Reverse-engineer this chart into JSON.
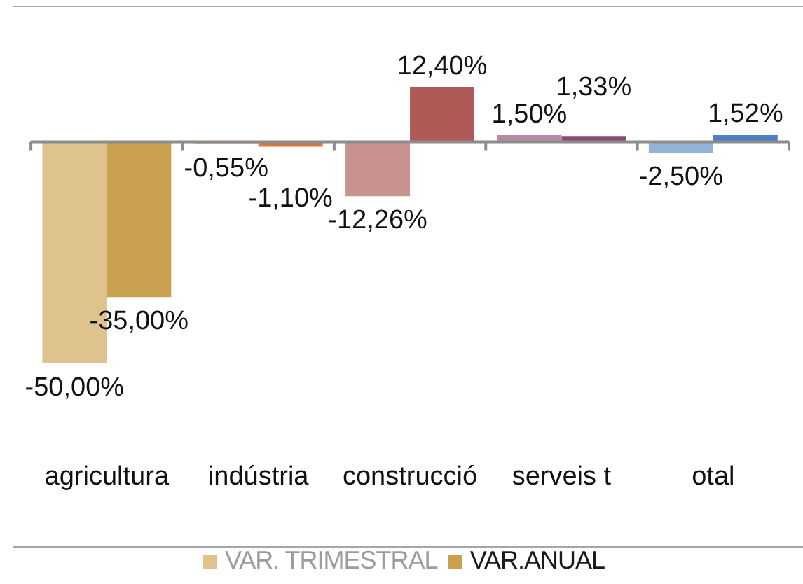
{
  "chart_data": {
    "type": "bar",
    "categories": [
      "agricultura",
      "indústria",
      "construcció",
      "serveis t",
      "otal"
    ],
    "series": [
      {
        "name": "VAR. TRIMESTRAL",
        "color": "#9a9ca0",
        "colors": [
          "#dfc38f",
          "#efc19f",
          "#c8938e",
          "#b58aa2",
          "#95b2d8"
        ],
        "values": [
          -50.0,
          -0.55,
          -12.26,
          1.5,
          -2.5
        ],
        "value_labels": [
          "-50,00%",
          "-0,55%",
          "-12,26%",
          "1,50%",
          "-2,50%"
        ]
      },
      {
        "name": "VAR.ANUAL",
        "color": "#1a1a1a",
        "colors": [
          "#c9a050",
          "#d9773f",
          "#b05a58",
          "#8a4a72",
          "#4f7fc0"
        ],
        "values": [
          -35.0,
          -1.1,
          12.4,
          1.33,
          1.52
        ],
        "value_labels": [
          "-35,00%",
          "-1,10%",
          "12,40%",
          "1,33%",
          "1,52%"
        ]
      }
    ],
    "legend": "bottom"
  }
}
